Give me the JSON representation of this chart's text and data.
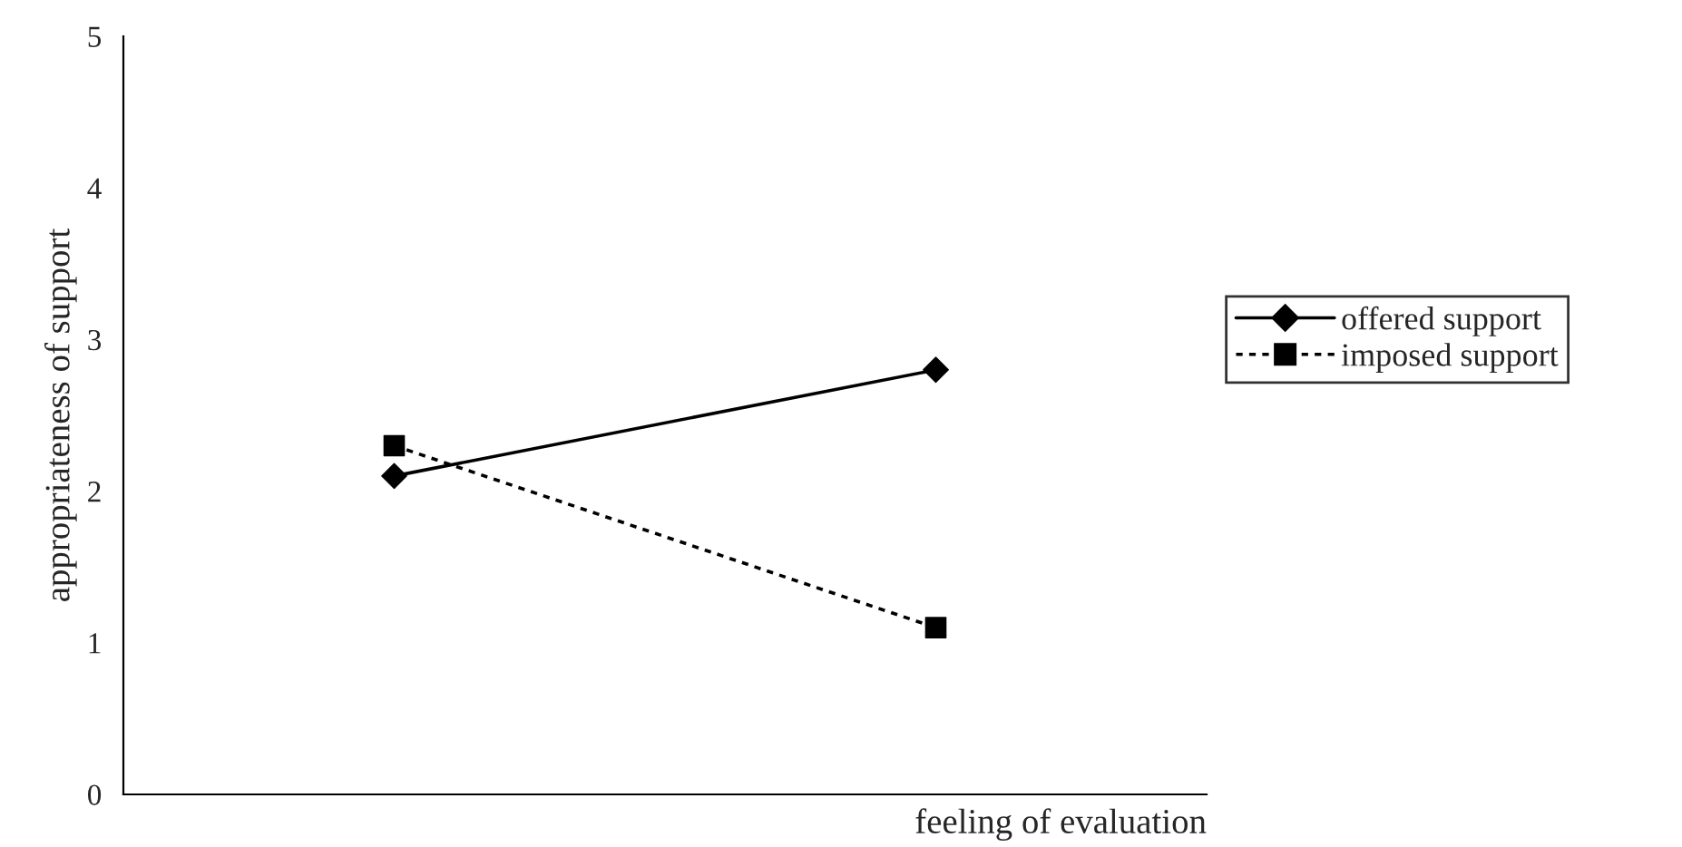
{
  "chart_data": {
    "type": "line",
    "xlabel": "feeling of evaluation",
    "ylabel": "appropriateness of support",
    "categories": [
      null,
      null
    ],
    "series": [
      {
        "name": "offered support",
        "color": "#000000",
        "values": [
          2.1,
          2.8
        ],
        "marker": "diamond",
        "line_style": "solid"
      },
      {
        "name": "imposed support",
        "color": "#000000",
        "values": [
          2.3,
          1.1
        ],
        "marker": "square",
        "line_style": "dotted"
      }
    ],
    "ylim": [
      0,
      5
    ],
    "yticks": [
      0,
      1,
      2,
      3,
      4,
      5
    ],
    "grid": false,
    "legend": "right"
  }
}
